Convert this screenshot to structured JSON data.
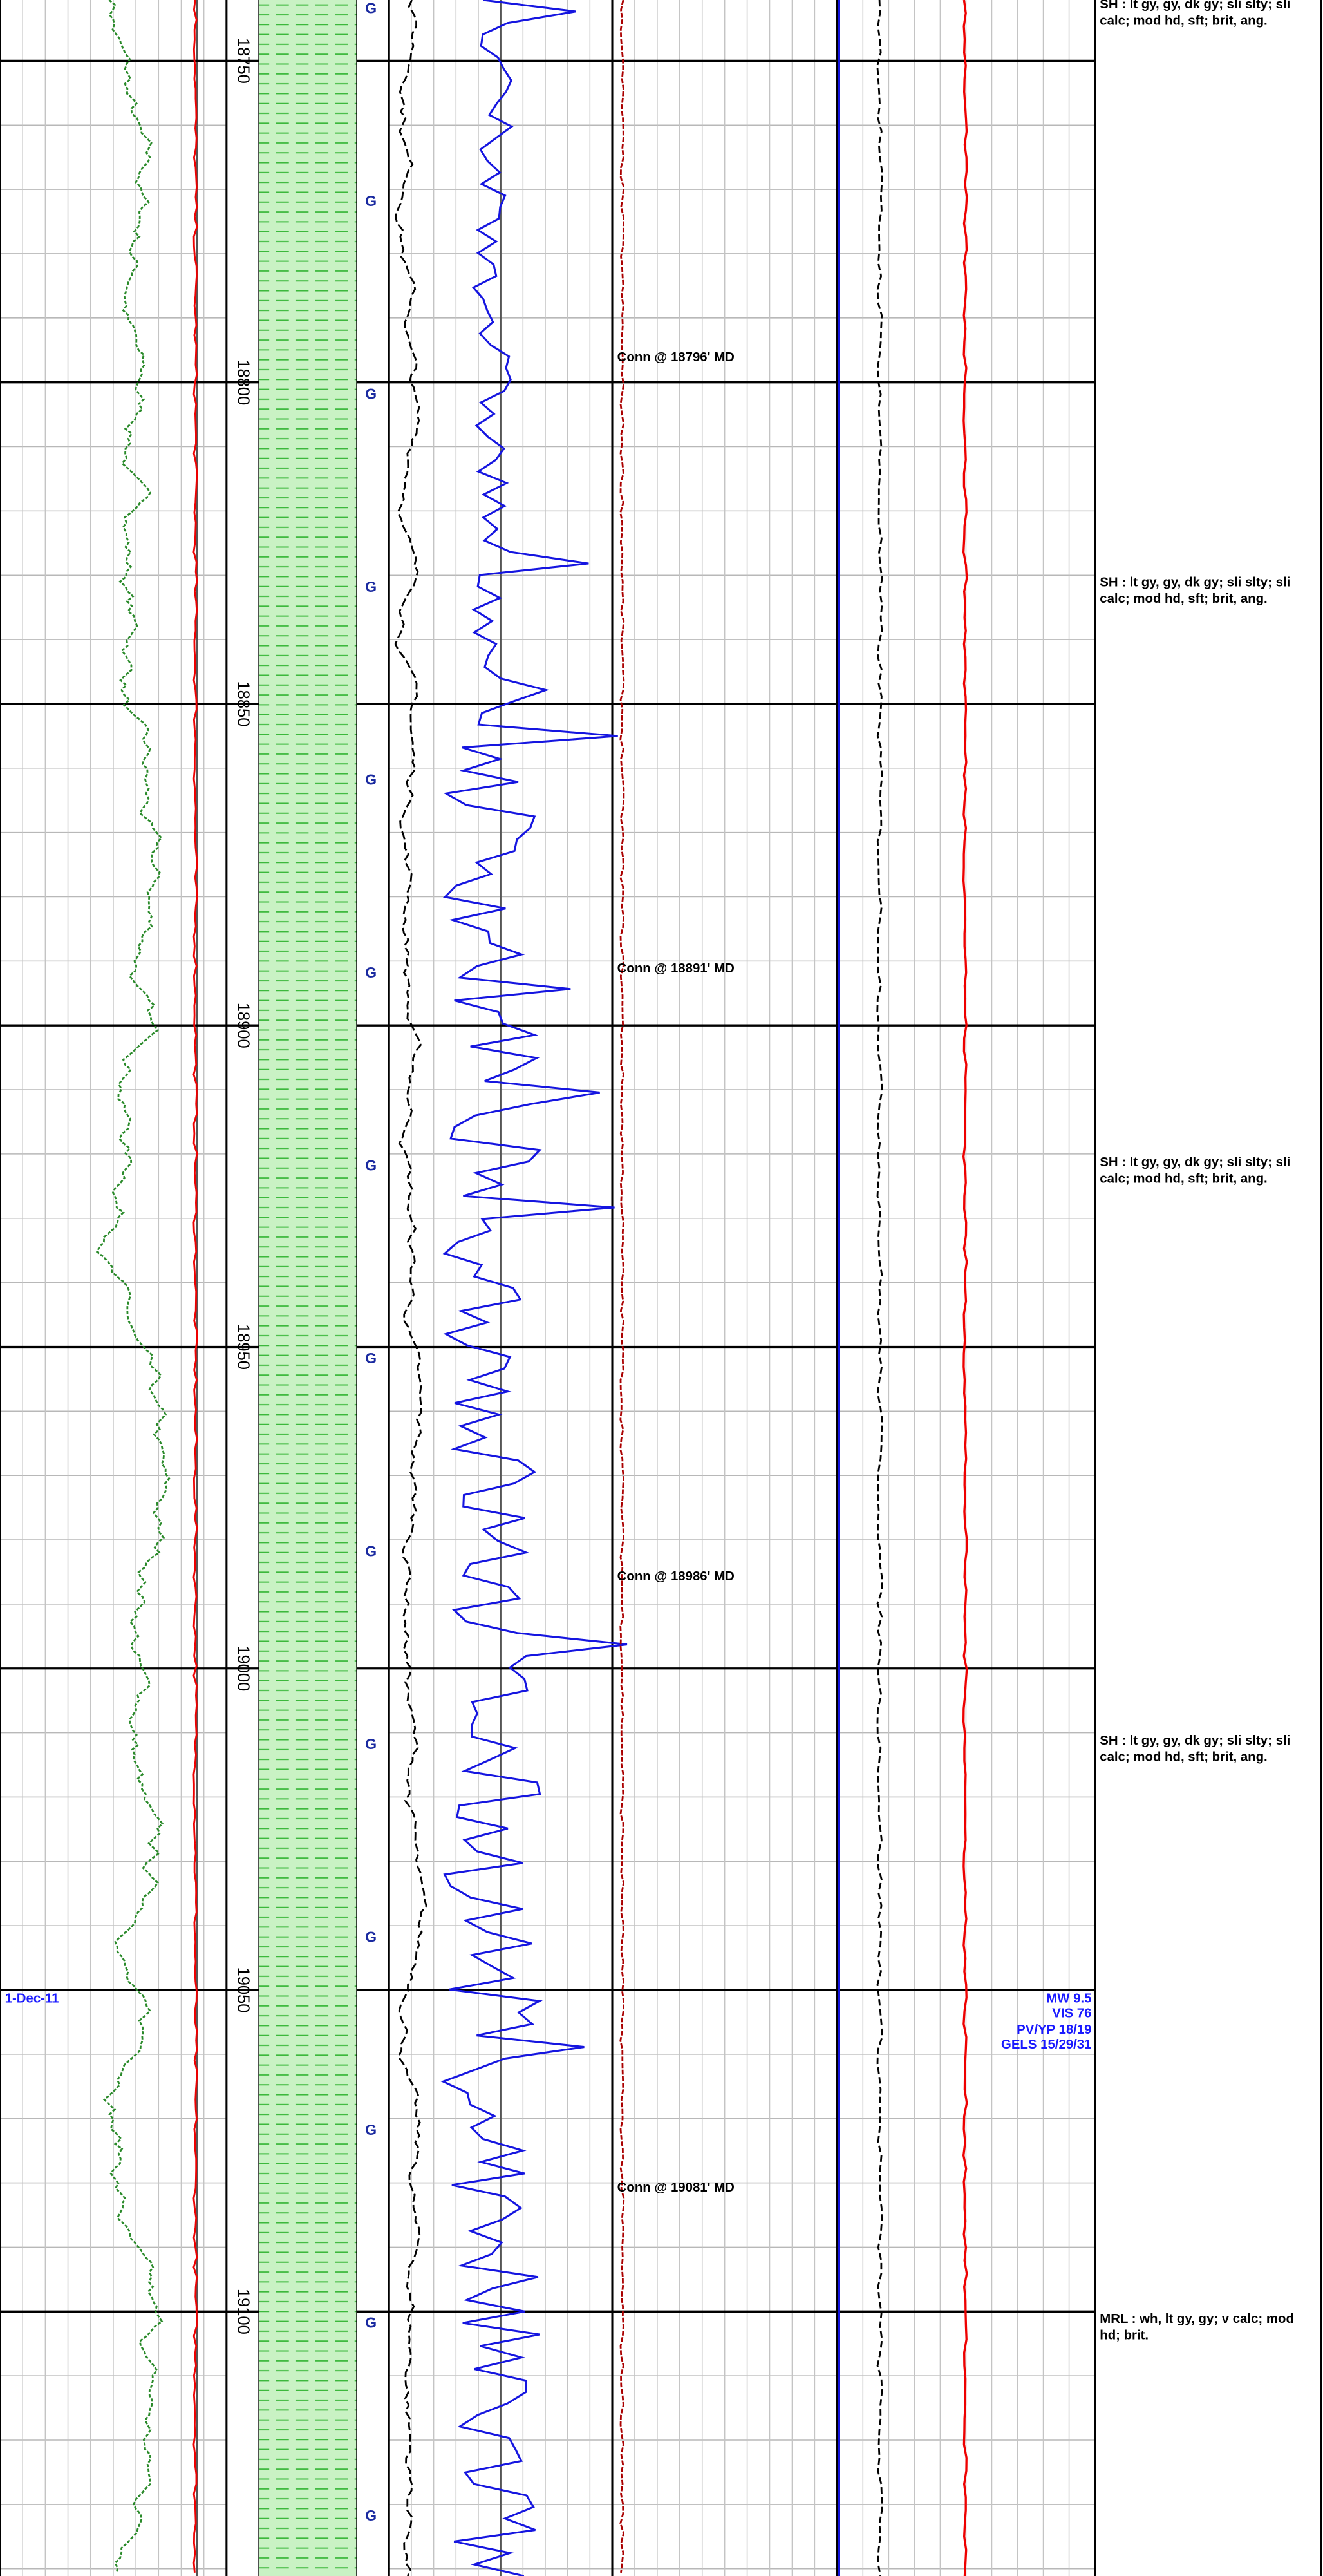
{
  "depth_track": {
    "ticks": [
      18750,
      18800,
      18850,
      18900,
      18950,
      19000,
      19050,
      19100
    ]
  },
  "gas_markers": [
    "G",
    "G",
    "G",
    "G",
    "G",
    "G",
    "G",
    "G",
    "G",
    "G",
    "G",
    "G",
    "G",
    "G"
  ],
  "connections": [
    "Conn @ 18796' MD",
    "Conn @ 18891' MD",
    "Conn @ 18986' MD",
    "Conn @ 19081' MD"
  ],
  "lithology": [
    {
      "lines": [
        "SH : lt gy, gy, dk gy;  sli slty;  sli",
        "calc;  mod hd, sft;  brit, ang."
      ]
    },
    {
      "lines": [
        "SH : lt gy, gy, dk gy;  sli slty;  sli",
        "calc;  mod hd, sft;  brit, ang."
      ]
    },
    {
      "lines": [
        "SH : lt gy, gy, dk gy;  sli slty;  sli",
        "calc;  mod hd, sft;  brit, ang."
      ]
    },
    {
      "lines": [
        "SH : lt gy, gy, dk gy;  sli slty;  sli",
        "calc;  mod hd, sft;  brit, ang."
      ]
    },
    {
      "lines": [
        "MRL : wh, lt gy, gy;  v calc;  mod",
        "hd;  brit."
      ]
    }
  ],
  "date": "1-Dec-11",
  "mud_properties": [
    "MW 9.5",
    "VIS 76",
    "PV/YP 18/19",
    "GELS 15/29/31"
  ]
}
